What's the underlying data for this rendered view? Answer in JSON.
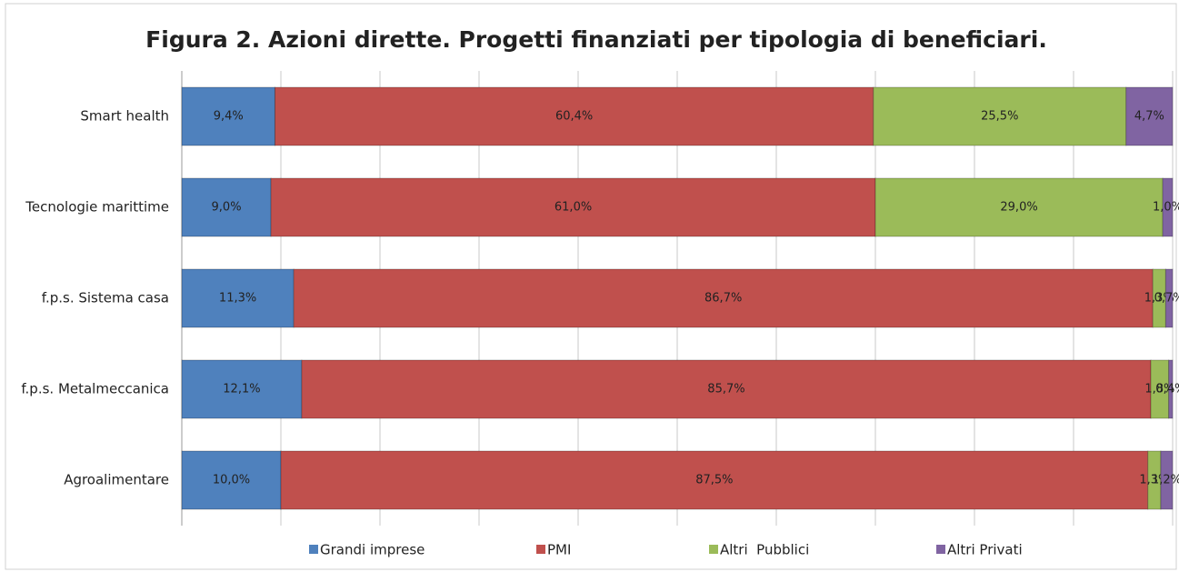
{
  "chart_data": {
    "type": "stacked_bar_horizontal",
    "title": "Figura 2. Azioni dirette. Progetti finanziati per tipologia di beneficiari.",
    "categories": [
      "Smart health",
      "Tecnologie marittime",
      "f.p.s. Sistema casa",
      "f.p.s. Metalmeccanica",
      "Agroalimentare"
    ],
    "series": [
      {
        "name": "Grandi imprese",
        "color": "#4f81bd",
        "values": [
          9.4,
          9.0,
          11.3,
          12.1,
          10.0
        ],
        "value_labels": [
          "9,4%",
          "9,0%",
          "11,3%",
          "12,1%",
          "10,0%"
        ]
      },
      {
        "name": "PMI",
        "color": "#c0504d",
        "values": [
          60.4,
          61.0,
          86.7,
          85.7,
          87.5
        ],
        "value_labels": [
          "60,4%",
          "61,0%",
          "86,7%",
          "85,7%",
          "87,5%"
        ]
      },
      {
        "name": "Altri  Pubblici",
        "color": "#9bbb59",
        "values": [
          25.5,
          29.0,
          1.3,
          1.8,
          1.3
        ],
        "value_labels": [
          "25,5%",
          "29,0%",
          "1,3%",
          "1,8%",
          "1,3%"
        ]
      },
      {
        "name": "Altri Privati",
        "color": "#8064a2",
        "values": [
          4.7,
          1.0,
          0.7,
          0.4,
          1.2
        ],
        "value_labels": [
          "4,7%",
          "1,0%",
          "0,7%",
          "0,4%",
          "1,2%"
        ]
      }
    ],
    "xlim": [
      0,
      100
    ],
    "xticks": [
      0,
      10,
      20,
      30,
      40,
      50,
      60,
      70,
      80,
      90,
      100
    ],
    "grid": true,
    "legend": "bottom"
  }
}
